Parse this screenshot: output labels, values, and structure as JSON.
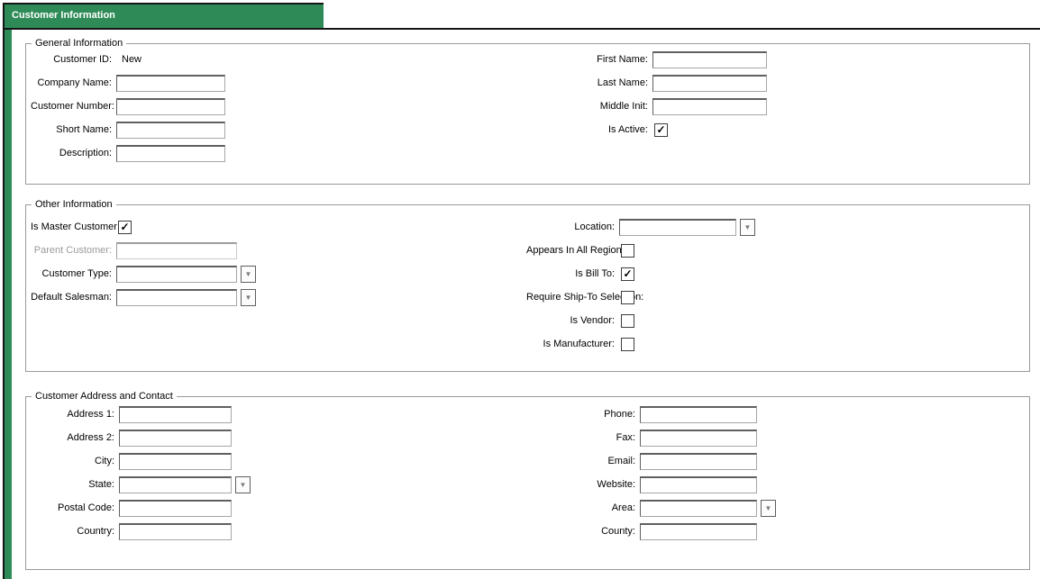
{
  "tab": {
    "title": "Customer Information"
  },
  "colors": {
    "tab_green": "#2e8b57",
    "frame_black": "#151515",
    "groupbox_border": "#9a9a9a",
    "disabled_text": "#9b9b9b"
  },
  "icons": {
    "dropdown_arrow": "▼",
    "checkmark": "✓"
  },
  "general": {
    "legend": "General Information",
    "customer_id": {
      "label": "Customer ID:",
      "value": "New"
    },
    "company_name": {
      "label": "Company Name:",
      "value": "",
      "placeholder": ""
    },
    "customer_number": {
      "label": "Customer Number:",
      "value": "",
      "placeholder": ""
    },
    "short_name": {
      "label": "Short Name:",
      "value": "",
      "placeholder": ""
    },
    "description": {
      "label": "Description:",
      "value": "",
      "placeholder": ""
    },
    "first_name": {
      "label": "First Name:",
      "value": "",
      "placeholder": ""
    },
    "last_name": {
      "label": "Last Name:",
      "value": "",
      "placeholder": ""
    },
    "middle_init": {
      "label": "Middle Init:",
      "value": "",
      "placeholder": ""
    },
    "is_active": {
      "label": "Is Active:",
      "check": "✓"
    }
  },
  "other": {
    "legend": "Other Information",
    "is_master_customer": {
      "label": "Is Master Customer:",
      "check": "✓"
    },
    "parent_customer": {
      "label": "Parent Customer:",
      "value": "",
      "disabled": true
    },
    "customer_type": {
      "label": "Customer Type:",
      "value": ""
    },
    "default_salesman": {
      "label": "Default Salesman:",
      "value": ""
    },
    "location": {
      "label": "Location:",
      "value": ""
    },
    "appears_in_all_regions": {
      "label": "Appears In All Regions:",
      "check": ""
    },
    "is_bill_to": {
      "label": "Is Bill To:",
      "check": "✓"
    },
    "require_ship_to_selection": {
      "label": "Require Ship-To Selection:",
      "check": ""
    },
    "is_vendor": {
      "label": "Is Vendor:",
      "check": ""
    },
    "is_manufacturer": {
      "label": "Is Manufacturer:",
      "check": ""
    }
  },
  "address": {
    "legend": "Customer Address and Contact",
    "address_1": {
      "label": "Address 1:",
      "value": ""
    },
    "address_2": {
      "label": "Address 2:",
      "value": ""
    },
    "city": {
      "label": "City:",
      "value": ""
    },
    "state": {
      "label": "State:",
      "value": ""
    },
    "postal_code": {
      "label": "Postal Code:",
      "value": ""
    },
    "country": {
      "label": "Country:",
      "value": ""
    },
    "phone": {
      "label": "Phone:",
      "value": ""
    },
    "fax": {
      "label": "Fax:",
      "value": ""
    },
    "email": {
      "label": "Email:",
      "value": ""
    },
    "website": {
      "label": "Website:",
      "value": ""
    },
    "area": {
      "label": "Area:",
      "value": ""
    },
    "county": {
      "label": "County:",
      "value": ""
    }
  }
}
